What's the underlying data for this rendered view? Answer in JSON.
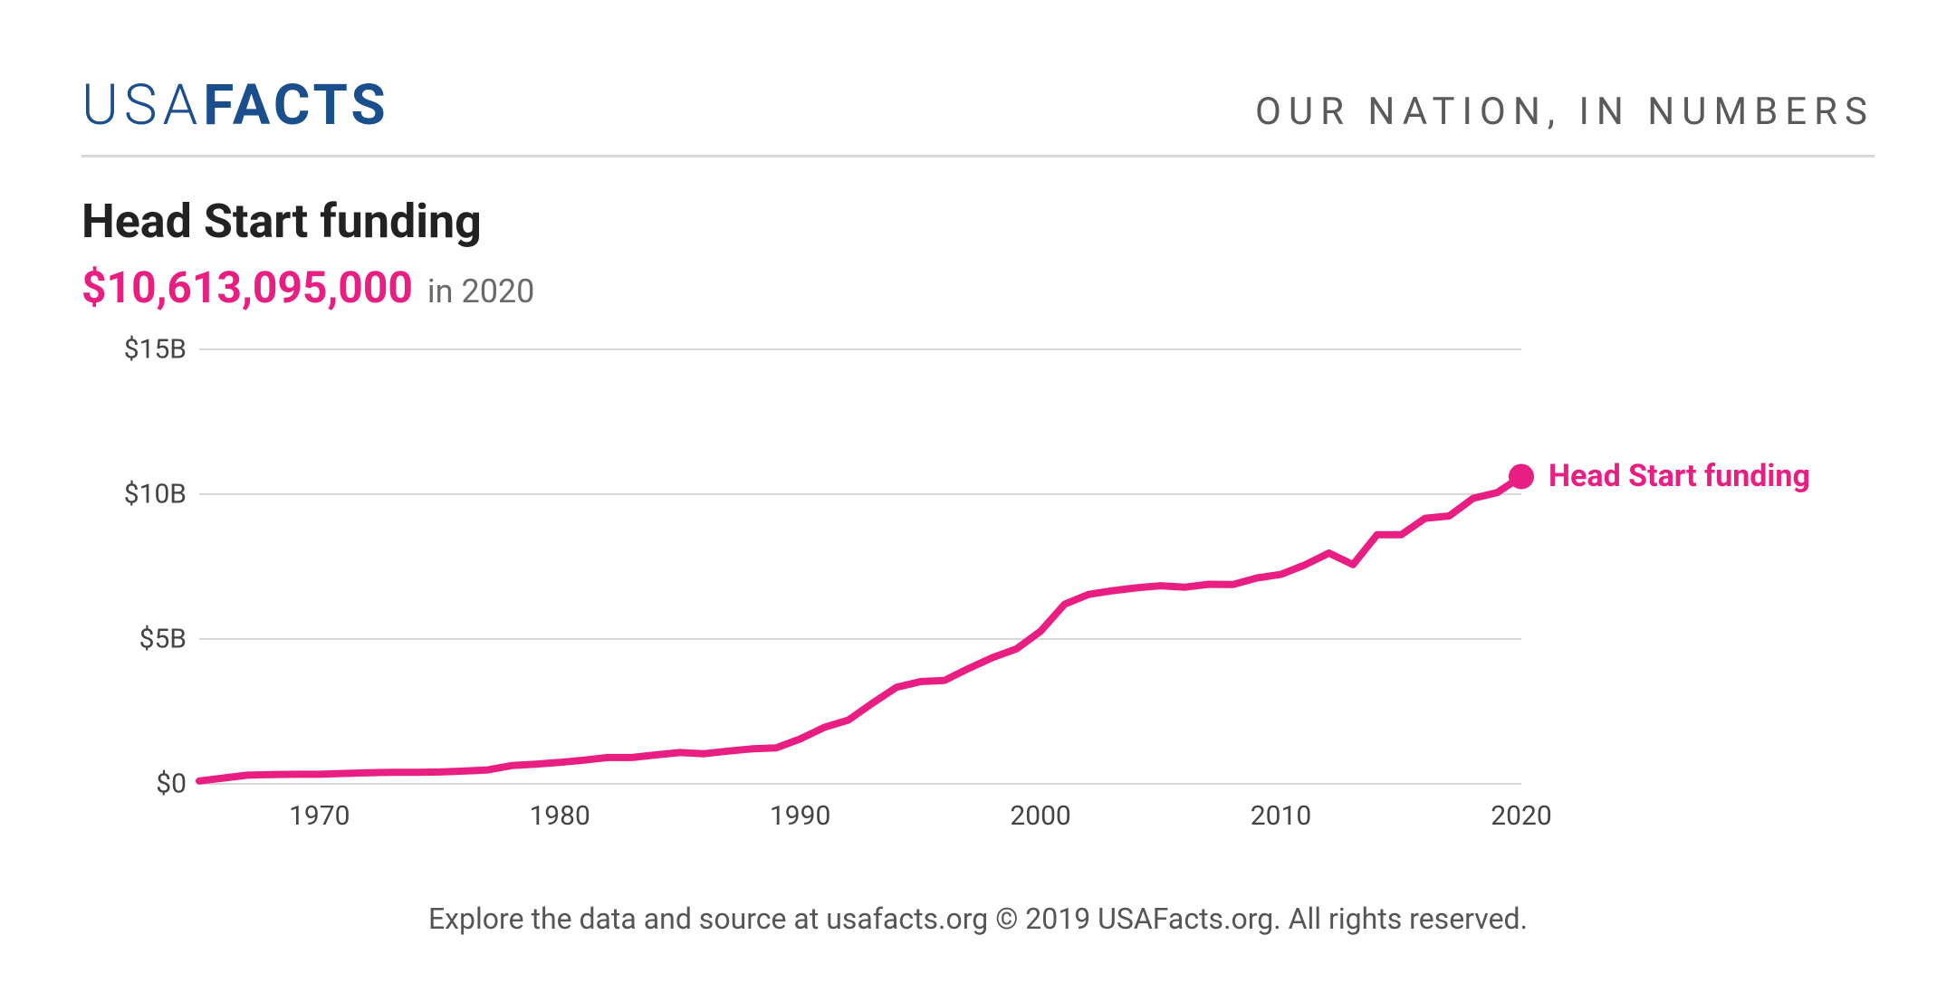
{
  "header": {
    "logo_light": "USA",
    "logo_bold": "FACTS",
    "logo_color": "#1a4e8c",
    "tagline": "OUR NATION, IN NUMBERS",
    "tagline_color": "#5a5a5a",
    "divider_color": "#d8d8d8"
  },
  "title": "Head Start funding",
  "headline_value": "$10,613,095,000",
  "headline_year": "in 2020",
  "headline_color": "#e91e82",
  "chart": {
    "type": "line",
    "series_label": "Head Start funding",
    "line_color": "#e91e82",
    "line_width": 8,
    "marker_radius": 14,
    "background_color": "#ffffff",
    "grid_color": "#d8d8d8",
    "axis_text_color": "#444444",
    "xlim": [
      1965,
      2020
    ],
    "ylim": [
      0,
      15
    ],
    "y_unit_suffix": "B",
    "y_unit_prefix": "$",
    "yticks": [
      0,
      5,
      10,
      15
    ],
    "ytick_labels": [
      "$0",
      "$5B",
      "$10B",
      "$15B"
    ],
    "xticks": [
      1970,
      1980,
      1990,
      2000,
      2010,
      2020
    ],
    "xtick_labels": [
      "1970",
      "1980",
      "1990",
      "2000",
      "2010",
      "2020"
    ],
    "data": [
      {
        "x": 1965,
        "y": 0.1
      },
      {
        "x": 1966,
        "y": 0.2
      },
      {
        "x": 1967,
        "y": 0.3
      },
      {
        "x": 1968,
        "y": 0.32
      },
      {
        "x": 1969,
        "y": 0.33
      },
      {
        "x": 1970,
        "y": 0.33
      },
      {
        "x": 1971,
        "y": 0.36
      },
      {
        "x": 1972,
        "y": 0.38
      },
      {
        "x": 1973,
        "y": 0.4
      },
      {
        "x": 1974,
        "y": 0.4
      },
      {
        "x": 1975,
        "y": 0.41
      },
      {
        "x": 1976,
        "y": 0.44
      },
      {
        "x": 1977,
        "y": 0.48
      },
      {
        "x": 1978,
        "y": 0.63
      },
      {
        "x": 1979,
        "y": 0.68
      },
      {
        "x": 1980,
        "y": 0.74
      },
      {
        "x": 1981,
        "y": 0.82
      },
      {
        "x": 1982,
        "y": 0.91
      },
      {
        "x": 1983,
        "y": 0.91
      },
      {
        "x": 1984,
        "y": 1.0
      },
      {
        "x": 1985,
        "y": 1.08
      },
      {
        "x": 1986,
        "y": 1.04
      },
      {
        "x": 1987,
        "y": 1.13
      },
      {
        "x": 1988,
        "y": 1.21
      },
      {
        "x": 1989,
        "y": 1.24
      },
      {
        "x": 1990,
        "y": 1.55
      },
      {
        "x": 1991,
        "y": 1.95
      },
      {
        "x": 1992,
        "y": 2.2
      },
      {
        "x": 1993,
        "y": 2.78
      },
      {
        "x": 1994,
        "y": 3.33
      },
      {
        "x": 1995,
        "y": 3.53
      },
      {
        "x": 1996,
        "y": 3.57
      },
      {
        "x": 1997,
        "y": 3.98
      },
      {
        "x": 1998,
        "y": 4.36
      },
      {
        "x": 1999,
        "y": 4.66
      },
      {
        "x": 2000,
        "y": 5.27
      },
      {
        "x": 2001,
        "y": 6.2
      },
      {
        "x": 2002,
        "y": 6.54
      },
      {
        "x": 2003,
        "y": 6.67
      },
      {
        "x": 2004,
        "y": 6.77
      },
      {
        "x": 2005,
        "y": 6.84
      },
      {
        "x": 2006,
        "y": 6.79
      },
      {
        "x": 2007,
        "y": 6.89
      },
      {
        "x": 2008,
        "y": 6.88
      },
      {
        "x": 2009,
        "y": 7.11
      },
      {
        "x": 2010,
        "y": 7.23
      },
      {
        "x": 2011,
        "y": 7.56
      },
      {
        "x": 2012,
        "y": 7.97
      },
      {
        "x": 2013,
        "y": 7.57
      },
      {
        "x": 2014,
        "y": 8.6
      },
      {
        "x": 2015,
        "y": 8.6
      },
      {
        "x": 2016,
        "y": 9.17
      },
      {
        "x": 2017,
        "y": 9.25
      },
      {
        "x": 2018,
        "y": 9.86
      },
      {
        "x": 2019,
        "y": 10.06
      },
      {
        "x": 2020,
        "y": 10.61
      }
    ],
    "axis_label_fontsize": 30,
    "series_label_fontsize": 34
  },
  "footer": "Explore the data and source at usafacts.org © 2019 USAFacts.org. All rights reserved.",
  "footer_color": "#555555"
}
